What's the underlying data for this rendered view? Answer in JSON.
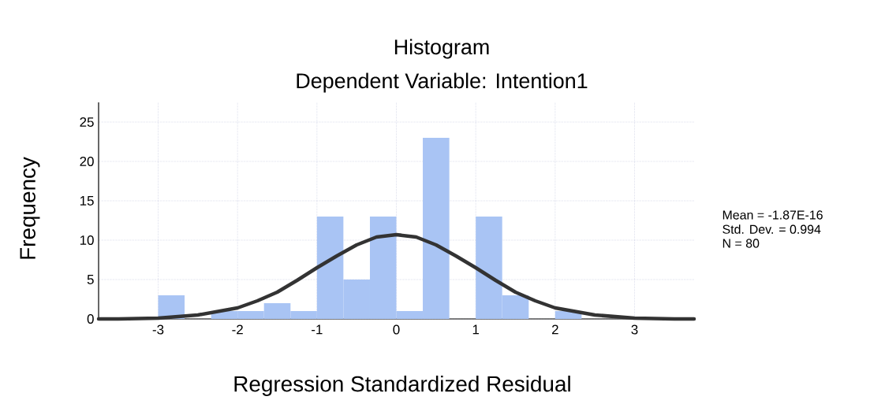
{
  "chart_data": {
    "type": "histogram",
    "title": "Histogram",
    "subtitle": "Dependent Variable: Intention1",
    "xlabel": "Regression Standardized Residual",
    "ylabel": "Frequency",
    "series": [
      {
        "color": "#a9c4f4",
        "bins": [
          -3,
          -2.667,
          -2.333,
          -2,
          -1.667,
          -1.333,
          -1,
          -0.667,
          -0.333,
          0,
          0.333,
          0.667,
          1,
          1.333,
          1.667,
          2,
          2.333
        ],
        "values": [
          3,
          0,
          1,
          1,
          2,
          1,
          13,
          5,
          13,
          1,
          23,
          0,
          13,
          3,
          0,
          1
        ]
      },
      {
        "type": "line",
        "color": "#333333",
        "x": [
          -3.75,
          -3.5,
          -3,
          -2.5,
          -2,
          -1.75,
          -1.5,
          -1.25,
          -1,
          -0.75,
          -0.5,
          -0.25,
          0,
          0.25,
          0.5,
          0.75,
          1,
          1.25,
          1.5,
          1.75,
          2,
          2.5,
          3,
          3.5,
          3.75
        ],
        "values": [
          0,
          0,
          0.1,
          0.5,
          1.4,
          2.3,
          3.4,
          4.9,
          6.5,
          8.0,
          9.4,
          10.4,
          10.7,
          10.4,
          9.4,
          8.0,
          6.5,
          4.9,
          3.4,
          2.3,
          1.4,
          0.5,
          0.1,
          0,
          0
        ]
      }
    ],
    "xlim": [
      -3.75,
      3.75
    ],
    "ylim": [
      0,
      27.5
    ],
    "xticks": [
      -3,
      -2,
      -1,
      0,
      1,
      2,
      3
    ],
    "yticks": [
      0,
      5,
      10,
      15,
      20,
      25
    ],
    "grid": true,
    "line_style": "solid",
    "marker": "none",
    "annotations": [
      "Mean = -1.87E-16",
      "Std. Dev. = 0.994",
      "N = 80"
    ]
  }
}
